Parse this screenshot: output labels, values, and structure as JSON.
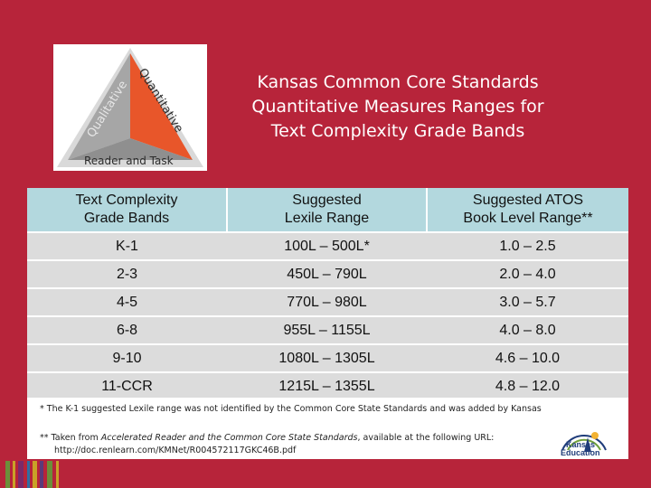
{
  "logo": {
    "qualitative": "Qualitative",
    "quantitative": "Quantitative",
    "reader_task": "Reader and Task"
  },
  "title": {
    "line1": "Kansas Common Core Standards",
    "line2": "Quantitative Measures Ranges for",
    "line3": "Text Complexity Grade Bands"
  },
  "table": {
    "headers": [
      [
        "Text Complexity",
        "Grade Bands"
      ],
      [
        "Suggested",
        "Lexile Range"
      ],
      [
        "Suggested ATOS",
        "Book Level Range**"
      ]
    ],
    "rows": [
      [
        "K-1",
        "100L – 500L*",
        "1.0 – 2.5"
      ],
      [
        "2-3",
        "450L – 790L",
        "2.0 – 4.0"
      ],
      [
        "4-5",
        "770L – 980L",
        "3.0 – 5.7"
      ],
      [
        "6-8",
        "955L – 1155L",
        "4.0 – 8.0"
      ],
      [
        "9-10",
        "1080L – 1305L",
        "4.6 – 10.0"
      ],
      [
        "11-CCR",
        "1215L – 1355L",
        "4.8 – 12.0"
      ]
    ]
  },
  "notes": {
    "note1": "* The K-1 suggested Lexile range was not identified by the Common Core State Standards and was added by Kansas",
    "note2_prefix": "** Taken from ",
    "note2_italic": "Accelerated Reader and the Common Core State Standards",
    "note2_suffix": ", available at the following URL:",
    "note2_url": "http://doc.renlearn.com/KMNet/R004572117GKC46B.pdf"
  },
  "ks_logo": {
    "line1": "Kansas",
    "line2": "Education"
  },
  "colors": {
    "background": "#b7243a",
    "header_cell": "#b3d8de",
    "body_cell": "#dcdcdc",
    "triangle_orange": "#e8562a",
    "triangle_gray": "#9a9a9a"
  }
}
